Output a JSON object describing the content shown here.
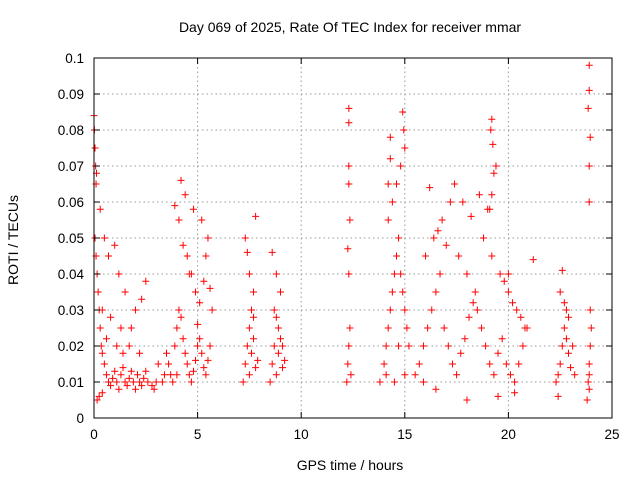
{
  "chart_data": {
    "type": "scatter",
    "title": "Day 069 of 2025, Rate Of TEC Index for receiver mmar",
    "xlabel": "GPS time / hours",
    "ylabel": "ROTI / TECUs",
    "xlim": [
      0,
      25
    ],
    "ylim": [
      0,
      0.1
    ],
    "x_ticks": [
      0,
      5,
      10,
      15,
      20,
      25
    ],
    "x_tick_labels": [
      "0",
      "5",
      "10",
      "15",
      "20",
      "25"
    ],
    "y_ticks": [
      0,
      0.01,
      0.02,
      0.03,
      0.04,
      0.05,
      0.06,
      0.07,
      0.08,
      0.09,
      0.1
    ],
    "y_tick_labels": [
      "0",
      "0.01",
      "0.02",
      "0.03",
      "0.04",
      "0.05",
      "0.06",
      "0.07",
      "0.08",
      "0.09",
      "0.1"
    ],
    "grid": true,
    "marker": "plus",
    "color": "#ff0000",
    "series": [
      {
        "x": [
          0.0,
          0.02,
          0.05,
          0.08,
          0.1,
          0.12,
          0.05,
          0.1,
          0.15,
          0.2,
          0.25,
          0.3,
          0.35,
          0.4,
          0.5,
          0.6,
          0.7,
          0.8,
          0.9,
          1.0,
          1.1,
          1.2,
          1.3,
          1.4,
          1.5,
          1.6,
          1.7,
          1.8,
          1.9,
          2.0,
          2.1,
          2.2,
          2.3,
          2.4,
          2.5,
          0.3,
          0.5,
          0.7,
          1.0,
          1.2,
          1.5,
          0.4,
          0.8,
          1.3,
          1.7,
          2.2,
          2.6,
          2.8,
          2.9,
          3.0,
          3.1,
          2.5,
          2.3,
          2.0,
          1.8,
          0.6,
          1.1,
          1.4,
          0.15,
          0.25,
          0.4,
          3.5,
          3.6,
          3.7,
          3.8,
          3.9,
          4.0,
          4.1,
          4.2,
          4.3,
          4.4,
          4.5,
          4.6,
          4.7,
          4.8,
          4.9,
          5.0,
          5.1,
          5.2,
          5.3,
          5.4,
          5.5,
          5.6,
          5.7,
          3.9,
          4.1,
          4.3,
          4.5,
          4.7,
          4.9,
          5.1,
          5.3,
          5.5,
          5.6,
          4.2,
          4.4,
          4.8,
          5.2,
          4.0,
          4.6,
          3.3,
          3.4,
          5.0,
          5.4,
          7.2,
          7.3,
          7.4,
          7.5,
          7.6,
          7.7,
          7.8,
          7.9,
          7.3,
          7.5,
          7.7,
          7.4,
          7.6,
          7.8,
          7.5,
          7.7,
          8.5,
          8.6,
          8.7,
          8.8,
          8.9,
          9.0,
          9.1,
          9.2,
          8.6,
          8.8,
          9.0,
          8.7,
          8.9,
          8.8,
          9.1,
          12.2,
          12.25,
          12.3,
          12.35,
          12.4,
          12.3,
          12.25,
          12.35,
          12.3,
          12.3,
          12.3,
          12.3,
          13.8,
          14.0,
          14.1,
          14.2,
          14.3,
          14.4,
          14.5,
          14.6,
          14.7,
          14.8,
          14.9,
          15.0,
          15.1,
          15.2,
          14.2,
          14.4,
          14.6,
          14.8,
          15.0,
          14.3,
          14.9,
          14.1,
          15.0,
          14.5,
          14.7,
          14.3,
          14.2,
          14.95,
          15.5,
          15.7,
          15.9,
          16.1,
          16.3,
          16.5,
          16.7,
          16.9,
          17.1,
          17.3,
          17.5,
          17.7,
          17.9,
          18.1,
          18.3,
          18.5,
          18.7,
          18.9,
          19.1,
          19.3,
          19.5,
          19.7,
          19.9,
          20.1,
          20.3,
          20.5,
          20.7,
          20.9,
          16.0,
          16.4,
          16.8,
          17.2,
          17.6,
          18.0,
          18.4,
          18.8,
          19.2,
          19.6,
          20.0,
          20.4,
          20.8,
          16.6,
          17.0,
          17.4,
          18.2,
          18.6,
          19.0,
          19.4,
          19.8,
          20.2,
          20.6,
          19.15,
          19.2,
          19.25,
          19.3,
          19.2,
          19.1,
          16.2,
          17.8,
          15.9,
          16.5,
          18.0,
          19.5,
          20.3,
          21.2,
          20.0,
          22.3,
          22.4,
          22.5,
          22.6,
          22.7,
          22.8,
          22.9,
          23.0,
          22.5,
          22.7,
          22.9,
          22.6,
          22.8,
          22.4,
          23.1,
          23.2,
          23.8,
          23.85,
          23.9,
          23.95,
          24.0,
          23.9,
          23.9,
          23.95,
          23.85,
          23.9,
          23.9,
          23.95,
          23.9,
          23.9
        ],
        "y": [
          0.084,
          0.08,
          0.075,
          0.07,
          0.065,
          0.068,
          0.05,
          0.045,
          0.04,
          0.035,
          0.03,
          0.025,
          0.02,
          0.018,
          0.015,
          0.012,
          0.01,
          0.009,
          0.011,
          0.013,
          0.01,
          0.008,
          0.012,
          0.014,
          0.01,
          0.009,
          0.011,
          0.013,
          0.01,
          0.008,
          0.012,
          0.01,
          0.009,
          0.011,
          0.013,
          0.058,
          0.05,
          0.045,
          0.048,
          0.04,
          0.035,
          0.03,
          0.028,
          0.025,
          0.02,
          0.018,
          0.01,
          0.009,
          0.008,
          0.01,
          0.015,
          0.038,
          0.033,
          0.03,
          0.025,
          0.022,
          0.02,
          0.018,
          0.005,
          0.006,
          0.007,
          0.018,
          0.015,
          0.012,
          0.01,
          0.02,
          0.025,
          0.03,
          0.028,
          0.022,
          0.018,
          0.015,
          0.012,
          0.01,
          0.013,
          0.016,
          0.02,
          0.022,
          0.018,
          0.014,
          0.012,
          0.016,
          0.02,
          0.03,
          0.059,
          0.055,
          0.048,
          0.045,
          0.04,
          0.035,
          0.032,
          0.038,
          0.05,
          0.036,
          0.066,
          0.062,
          0.058,
          0.055,
          0.012,
          0.04,
          0.01,
          0.012,
          0.026,
          0.045,
          0.01,
          0.015,
          0.02,
          0.012,
          0.018,
          0.022,
          0.014,
          0.016,
          0.05,
          0.04,
          0.035,
          0.046,
          0.03,
          0.056,
          0.025,
          0.028,
          0.01,
          0.015,
          0.02,
          0.012,
          0.018,
          0.022,
          0.014,
          0.016,
          0.046,
          0.04,
          0.035,
          0.03,
          0.025,
          0.028,
          0.02,
          0.01,
          0.015,
          0.02,
          0.025,
          0.012,
          0.04,
          0.047,
          0.055,
          0.065,
          0.07,
          0.082,
          0.086,
          0.01,
          0.015,
          0.02,
          0.025,
          0.03,
          0.035,
          0.04,
          0.045,
          0.05,
          0.04,
          0.035,
          0.03,
          0.025,
          0.02,
          0.055,
          0.06,
          0.065,
          0.07,
          0.075,
          0.078,
          0.085,
          0.012,
          0.012,
          0.01,
          0.02,
          0.072,
          0.065,
          0.08,
          0.012,
          0.015,
          0.02,
          0.025,
          0.03,
          0.035,
          0.04,
          0.025,
          0.02,
          0.015,
          0.012,
          0.018,
          0.022,
          0.028,
          0.032,
          0.03,
          0.025,
          0.02,
          0.015,
          0.012,
          0.018,
          0.022,
          0.015,
          0.012,
          0.01,
          0.015,
          0.02,
          0.025,
          0.045,
          0.05,
          0.055,
          0.06,
          0.045,
          0.04,
          0.035,
          0.05,
          0.045,
          0.04,
          0.035,
          0.03,
          0.025,
          0.052,
          0.048,
          0.065,
          0.056,
          0.062,
          0.058,
          0.07,
          0.038,
          0.032,
          0.028,
          0.08,
          0.083,
          0.076,
          0.068,
          0.062,
          0.058,
          0.064,
          0.06,
          0.01,
          0.008,
          0.005,
          0.006,
          0.007,
          0.044,
          0.04,
          0.01,
          0.012,
          0.015,
          0.02,
          0.025,
          0.03,
          0.018,
          0.014,
          0.035,
          0.032,
          0.028,
          0.041,
          0.022,
          0.006,
          0.02,
          0.012,
          0.005,
          0.01,
          0.015,
          0.02,
          0.025,
          0.06,
          0.07,
          0.078,
          0.086,
          0.091,
          0.098,
          0.03,
          0.008,
          0.012
        ]
      }
    ]
  }
}
